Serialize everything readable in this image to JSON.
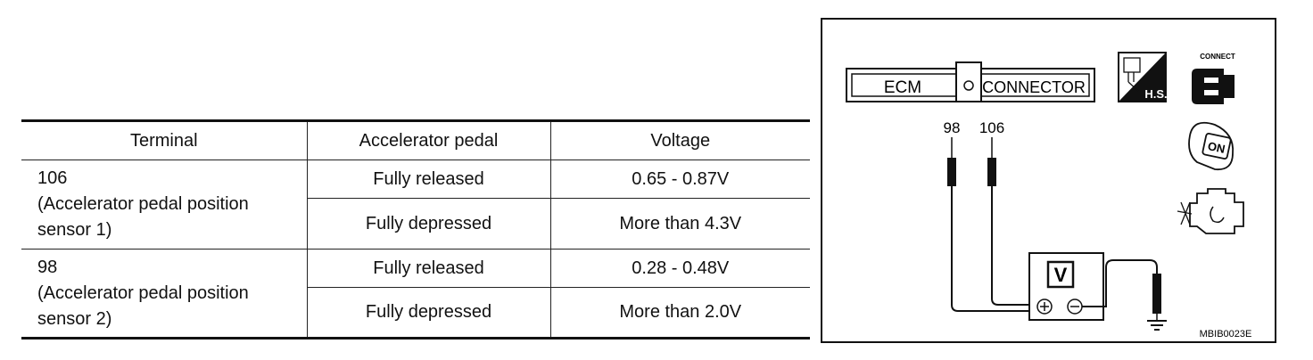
{
  "table": {
    "headers": [
      "Terminal",
      "Accelerator pedal",
      "Voltage"
    ],
    "groups": [
      {
        "terminal_number": "106",
        "terminal_desc": " (Accelerator pedal position sensor 1)",
        "rows": [
          {
            "pedal": "Fully released",
            "voltage": "0.65 - 0.87V"
          },
          {
            "pedal": "Fully depressed",
            "voltage": "More than 4.3V"
          }
        ]
      },
      {
        "terminal_number": "98",
        "terminal_desc": "(Accelerator pedal position sensor 2)",
        "rows": [
          {
            "pedal": "Fully released",
            "voltage": "0.28 - 0.48V"
          },
          {
            "pedal": "Fully depressed",
            "voltage": "More than 2.0V"
          }
        ]
      }
    ]
  },
  "diagram": {
    "ecm_label": "ECM",
    "connector_label": "CONNECTOR",
    "probe_left_label": "98",
    "probe_right_label": "106",
    "meter_label": "V",
    "hs_label": "H.S.",
    "connect_label": "CONNECT",
    "ignition_label": "ON",
    "figure_code": "MBIB0023E"
  }
}
